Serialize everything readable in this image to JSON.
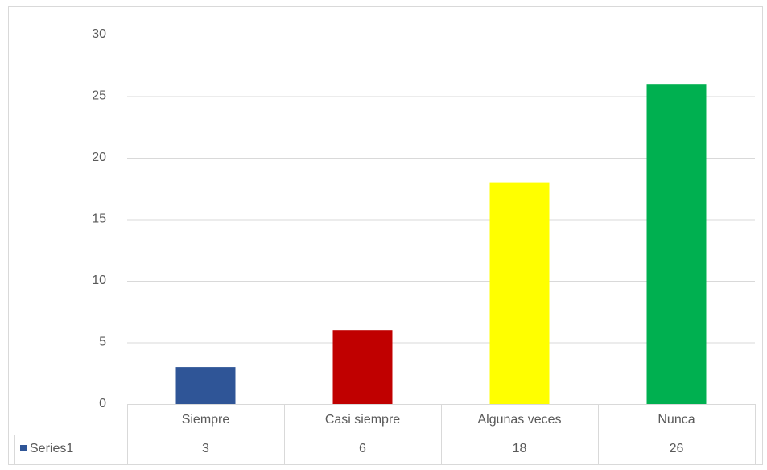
{
  "chart_data": {
    "type": "bar",
    "categories": [
      "Siempre",
      "Casi siempre",
      "Algunas veces",
      "Nunca"
    ],
    "series": [
      {
        "name": "Series1",
        "color": "#2f5597",
        "values": [
          3,
          6,
          18,
          26
        ]
      }
    ],
    "colors": [
      "#2f5597",
      "#c00000",
      "#ffff00",
      "#00b050"
    ],
    "ylim": [
      0,
      30
    ],
    "yticks": [
      0,
      5,
      10,
      15,
      20,
      25,
      30
    ],
    "grid": true,
    "data_table": true
  }
}
